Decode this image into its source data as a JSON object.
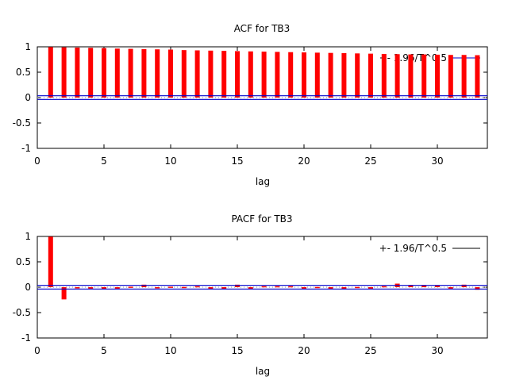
{
  "chart_data": [
    {
      "type": "bar",
      "title": "ACF for TB3",
      "xlabel": "lag",
      "ylabel": "",
      "xlim": [
        0,
        33.75
      ],
      "ylim": [
        -1,
        1
      ],
      "xticks": [
        "0",
        "5",
        "10",
        "15",
        "20",
        "25",
        "30"
      ],
      "yticks": [
        "1",
        "0.5",
        "0",
        "-0.5",
        "-1"
      ],
      "legend": {
        "label": "+- 1.96/T^0.5",
        "position": "top-right"
      },
      "band": 0.036,
      "x": [
        1,
        2,
        3,
        4,
        5,
        6,
        7,
        8,
        9,
        10,
        11,
        12,
        13,
        14,
        15,
        16,
        17,
        18,
        19,
        20,
        21,
        22,
        23,
        24,
        25,
        26,
        27,
        28,
        29,
        30,
        31,
        32,
        33
      ],
      "values": [
        0.995,
        0.99,
        0.985,
        0.98,
        0.975,
        0.965,
        0.96,
        0.955,
        0.95,
        0.945,
        0.935,
        0.93,
        0.925,
        0.92,
        0.915,
        0.91,
        0.905,
        0.9,
        0.895,
        0.89,
        0.885,
        0.88,
        0.875,
        0.87,
        0.865,
        0.86,
        0.855,
        0.85,
        0.85,
        0.845,
        0.84,
        0.84,
        0.835
      ]
    },
    {
      "type": "bar",
      "title": "PACF for TB3",
      "xlabel": "lag",
      "ylabel": "",
      "xlim": [
        0,
        33.75
      ],
      "ylim": [
        -1,
        1
      ],
      "xticks": [
        "0",
        "5",
        "10",
        "15",
        "20",
        "25",
        "30"
      ],
      "yticks": [
        "1",
        "0.5",
        "0",
        "-0.5",
        "-1"
      ],
      "legend": {
        "label": "+- 1.96/T^0.5",
        "position": "top-right"
      },
      "band": 0.036,
      "x": [
        1,
        2,
        3,
        4,
        5,
        6,
        7,
        8,
        9,
        10,
        11,
        12,
        13,
        14,
        15,
        16,
        17,
        18,
        19,
        20,
        21,
        22,
        23,
        24,
        25,
        26,
        27,
        28,
        29,
        30,
        31,
        32,
        33
      ],
      "values": [
        0.995,
        -0.24,
        -0.01,
        -0.03,
        -0.04,
        -0.03,
        0.01,
        0.05,
        0.0,
        0.01,
        0.005,
        0.02,
        -0.04,
        -0.035,
        0.05,
        -0.04,
        0.02,
        0.02,
        0.02,
        -0.03,
        0.005,
        -0.04,
        -0.04,
        0.005,
        -0.03,
        0.02,
        0.07,
        0.04,
        0.04,
        0.03,
        -0.03,
        0.05,
        -0.05
      ]
    }
  ],
  "colors": {
    "bars": "#ff0000",
    "band": "#0000cc",
    "axis": "#000000"
  }
}
